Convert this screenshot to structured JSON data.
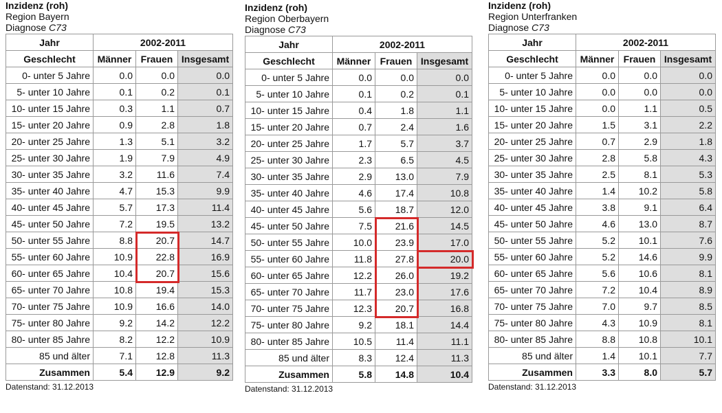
{
  "panels": [
    {
      "title": "Inzidenz (roh)",
      "region": "Region Bayern",
      "diagnose_label": "Diagnose",
      "diagnose_code": "C73",
      "header": {
        "jahr": "Jahr",
        "period": "2002-2011",
        "geschlecht": "Geschlecht",
        "columns": [
          "Männer",
          "Frauen",
          "Insgesamt"
        ]
      },
      "rows": [
        [
          "0- unter 5 Jahre",
          "0.0",
          "0.0",
          "0.0"
        ],
        [
          "5- unter 10 Jahre",
          "0.1",
          "0.2",
          "0.1"
        ],
        [
          "10- unter 15 Jahre",
          "0.3",
          "1.1",
          "0.7"
        ],
        [
          "15- unter 20 Jahre",
          "0.9",
          "2.8",
          "1.8"
        ],
        [
          "20- unter 25 Jahre",
          "1.3",
          "5.1",
          "3.2"
        ],
        [
          "25- unter 30 Jahre",
          "1.9",
          "7.9",
          "4.9"
        ],
        [
          "30- unter 35 Jahre",
          "3.2",
          "11.6",
          "7.4"
        ],
        [
          "35- unter 40 Jahre",
          "4.7",
          "15.3",
          "9.9"
        ],
        [
          "40- unter 45 Jahre",
          "5.7",
          "17.3",
          "11.4"
        ],
        [
          "45- unter 50 Jahre",
          "7.2",
          "19.5",
          "13.2"
        ],
        [
          "50- unter 55 Jahre",
          "8.8",
          "20.7",
          "14.7"
        ],
        [
          "55- unter 60 Jahre",
          "10.9",
          "22.8",
          "16.9"
        ],
        [
          "60- unter 65 Jahre",
          "10.4",
          "20.7",
          "15.6"
        ],
        [
          "65- unter 70 Jahre",
          "10.8",
          "19.4",
          "15.3"
        ],
        [
          "70- unter 75 Jahre",
          "10.9",
          "16.6",
          "14.0"
        ],
        [
          "75- unter 80 Jahre",
          "9.2",
          "14.2",
          "12.2"
        ],
        [
          "80- unter 85 Jahre",
          "8.2",
          "12.2",
          "10.9"
        ],
        [
          "85 und älter",
          "7.1",
          "12.8",
          "11.3"
        ]
      ],
      "total": [
        "Zusammen",
        "5.4",
        "12.9",
        "9.2"
      ],
      "footer": "Datenstand: 31.12.2013"
    },
    {
      "title": "Inzidenz (roh)",
      "region": "Region Oberbayern",
      "diagnose_label": "Diagnose",
      "diagnose_code": "C73",
      "header": {
        "jahr": "Jahr",
        "period": "2002-2011",
        "geschlecht": "Geschlecht",
        "columns": [
          "Männer",
          "Frauen",
          "Insgesamt"
        ]
      },
      "rows": [
        [
          "0- unter 5 Jahre",
          "0.0",
          "0.0",
          "0.0"
        ],
        [
          "5- unter 10 Jahre",
          "0.1",
          "0.2",
          "0.1"
        ],
        [
          "10- unter 15 Jahre",
          "0.4",
          "1.8",
          "1.1"
        ],
        [
          "15- unter 20 Jahre",
          "0.7",
          "2.4",
          "1.6"
        ],
        [
          "20- unter 25 Jahre",
          "1.7",
          "5.7",
          "3.7"
        ],
        [
          "25- unter 30 Jahre",
          "2.3",
          "6.5",
          "4.5"
        ],
        [
          "30- unter 35 Jahre",
          "2.9",
          "13.0",
          "7.9"
        ],
        [
          "35- unter 40 Jahre",
          "4.6",
          "17.4",
          "10.8"
        ],
        [
          "40- unter 45 Jahre",
          "5.6",
          "18.7",
          "12.0"
        ],
        [
          "45- unter 50 Jahre",
          "7.5",
          "21.6",
          "14.5"
        ],
        [
          "50- unter 55 Jahre",
          "10.0",
          "23.9",
          "17.0"
        ],
        [
          "55- unter 60 Jahre",
          "11.8",
          "27.8",
          "20.0"
        ],
        [
          "60- unter 65 Jahre",
          "12.2",
          "26.0",
          "19.2"
        ],
        [
          "65- unter 70 Jahre",
          "11.7",
          "23.0",
          "17.6"
        ],
        [
          "70- unter 75 Jahre",
          "12.3",
          "20.7",
          "16.8"
        ],
        [
          "75- unter 80 Jahre",
          "9.2",
          "18.1",
          "14.4"
        ],
        [
          "80- unter 85 Jahre",
          "10.5",
          "11.4",
          "11.1"
        ],
        [
          "85 und älter",
          "8.3",
          "12.4",
          "11.3"
        ]
      ],
      "total": [
        "Zusammen",
        "5.8",
        "14.8",
        "10.4"
      ],
      "footer": "Datenstand: 31.12.2013"
    },
    {
      "title": "Inzidenz (roh)",
      "region": "Region Unterfranken",
      "diagnose_label": "Diagnose",
      "diagnose_code": "C73",
      "header": {
        "jahr": "Jahr",
        "period": "2002-2011",
        "geschlecht": "Geschlecht",
        "columns": [
          "Männer",
          "Frauen",
          "Insgesamt"
        ]
      },
      "rows": [
        [
          "0- unter 5 Jahre",
          "0.0",
          "0.0",
          "0.0"
        ],
        [
          "5- unter 10 Jahre",
          "0.0",
          "0.0",
          "0.0"
        ],
        [
          "10- unter 15 Jahre",
          "0.0",
          "1.1",
          "0.5"
        ],
        [
          "15- unter 20 Jahre",
          "1.5",
          "3.1",
          "2.2"
        ],
        [
          "20- unter 25 Jahre",
          "0.7",
          "2.9",
          "1.8"
        ],
        [
          "25- unter 30 Jahre",
          "2.8",
          "5.8",
          "4.3"
        ],
        [
          "30- unter 35 Jahre",
          "2.5",
          "8.1",
          "5.3"
        ],
        [
          "35- unter 40 Jahre",
          "1.4",
          "10.2",
          "5.8"
        ],
        [
          "40- unter 45 Jahre",
          "3.8",
          "9.1",
          "6.4"
        ],
        [
          "45- unter 50 Jahre",
          "4.6",
          "13.0",
          "8.7"
        ],
        [
          "50- unter 55 Jahre",
          "5.2",
          "10.1",
          "7.6"
        ],
        [
          "55- unter 60 Jahre",
          "5.2",
          "14.6",
          "9.9"
        ],
        [
          "60- unter 65 Jahre",
          "5.6",
          "10.6",
          "8.1"
        ],
        [
          "65- unter 70 Jahre",
          "7.2",
          "10.4",
          "8.9"
        ],
        [
          "70- unter 75 Jahre",
          "7.0",
          "9.7",
          "8.5"
        ],
        [
          "75- unter 80 Jahre",
          "4.3",
          "10.9",
          "8.1"
        ],
        [
          "80- unter 85 Jahre",
          "8.8",
          "10.8",
          "10.1"
        ],
        [
          "85 und älter",
          "1.4",
          "10.1",
          "7.7"
        ]
      ],
      "total": [
        "Zusammen",
        "3.3",
        "8.0",
        "5.7"
      ],
      "footer": "Datenstand: 31.12.2013"
    }
  ]
}
